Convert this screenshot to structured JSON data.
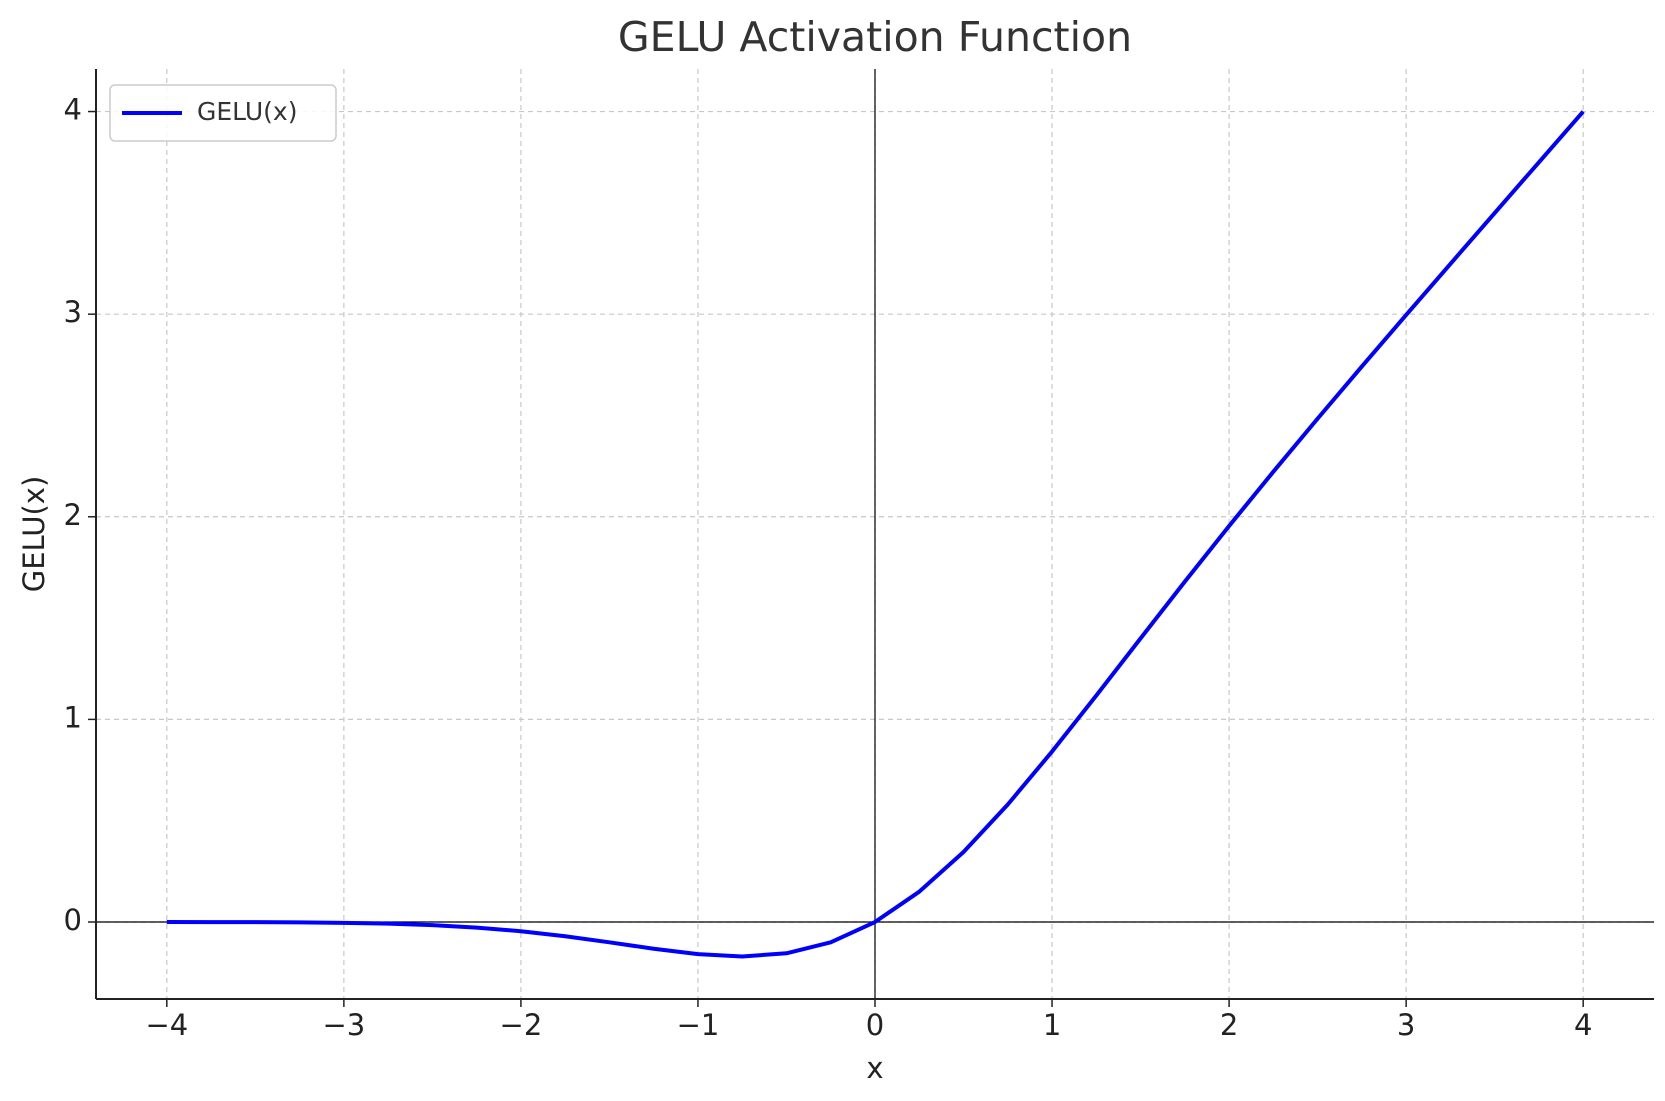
{
  "chart_data": {
    "type": "line",
    "title": "GELU Activation Function",
    "x_label": "x",
    "y_label": "GELU(x)",
    "x": [
      -4,
      -3.75,
      -3.5,
      -3.25,
      -3,
      -2.75,
      -2.5,
      -2.25,
      -2,
      -1.75,
      -1.5,
      -1.25,
      -1,
      -0.75,
      -0.5,
      -0.25,
      0,
      0.25,
      0.5,
      0.75,
      1,
      1.25,
      1.5,
      1.75,
      2,
      2.25,
      2.5,
      2.75,
      3,
      3.25,
      3.5,
      3.75,
      4
    ],
    "series": [
      {
        "name": "GELU(x)",
        "color": "#0000ff",
        "values": [
          -0.0001,
          -0.0003,
          -0.0008,
          -0.0019,
          -0.004,
          -0.0082,
          -0.0155,
          -0.0275,
          -0.0455,
          -0.0701,
          -0.1002,
          -0.132,
          -0.1587,
          -0.17,
          -0.1543,
          -0.1003,
          0,
          0.1497,
          0.3457,
          0.58,
          0.8413,
          1.118,
          1.3998,
          1.6799,
          1.9545,
          2.2225,
          2.4845,
          2.7418,
          2.996,
          3.2481,
          3.4992,
          3.7497,
          3.9999
        ]
      }
    ],
    "xlim": [
      -4.4,
      4.4
    ],
    "ylim": [
      -0.38,
      4.21
    ],
    "xticks": [
      {
        "value": -4,
        "label": "−4"
      },
      {
        "value": -3,
        "label": "−3"
      },
      {
        "value": -2,
        "label": "−2"
      },
      {
        "value": -1,
        "label": "−1"
      },
      0,
      1,
      2,
      3,
      4
    ],
    "yticks": [
      0,
      1,
      2,
      3,
      4
    ],
    "grid": true,
    "zero_lines": true,
    "legend": "upper left"
  }
}
